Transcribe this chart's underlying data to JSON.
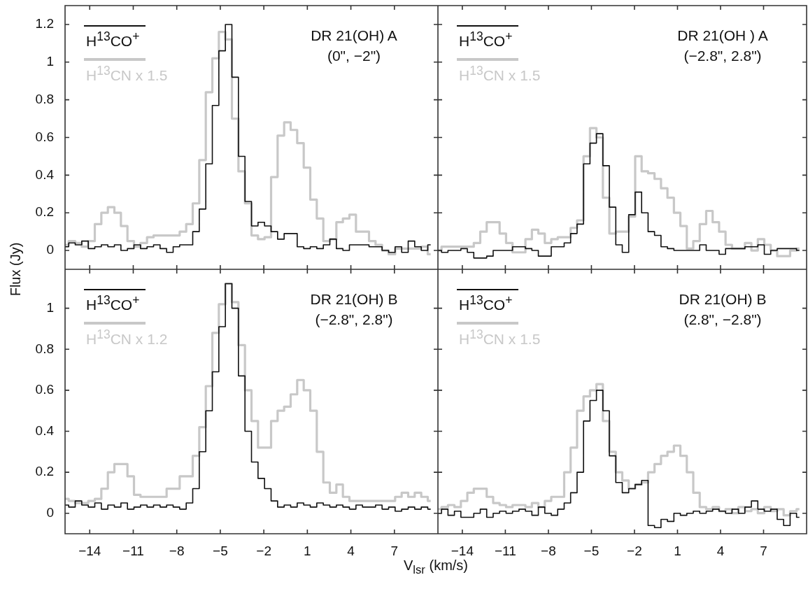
{
  "chart_data": [
    {
      "type": "step",
      "title": "DR 21(OH) A",
      "subtitle": "(0\", −2\")",
      "ylabel": "Flux (Jy)",
      "legend": "top left",
      "tick_labels": "y",
      "xlim": [
        -15.7,
        10
      ],
      "xticks": [
        -14,
        -11,
        -8,
        -5,
        -2,
        1,
        4,
        7
      ],
      "ylim": [
        -0.1,
        1.3
      ],
      "yticks": [
        0,
        0.2,
        0.4,
        0.6,
        0.8,
        1,
        1.2
      ],
      "x": [
        -15.7,
        -15.2,
        -14.8,
        -14.3,
        -13.9,
        -13.4,
        -13.0,
        -12.5,
        -12.1,
        -11.6,
        -11.2,
        -10.7,
        -10.3,
        -9.8,
        -9.4,
        -8.9,
        -8.5,
        -8.0,
        -7.6,
        -7.1,
        -6.7,
        -6.2,
        -5.8,
        -5.3,
        -4.9,
        -4.4,
        -4.0,
        -3.5,
        -3.1,
        -2.6,
        -2.2,
        -1.7,
        -1.3,
        -0.8,
        -0.4,
        0.1,
        0.5,
        1.0,
        1.4,
        1.9,
        2.3,
        2.8,
        3.2,
        3.7,
        4.1,
        4.6,
        5.0,
        5.5,
        5.9,
        6.4,
        6.8,
        7.3,
        7.7,
        8.2,
        8.6,
        9.1,
        9.5
      ],
      "series": [
        {
          "name": "H$^{13}$CO$^{+}$",
          "color": "#111111",
          "values": [
            0.02,
            0.04,
            0.03,
            0.05,
            0.01,
            0.02,
            0.03,
            0.02,
            0.03,
            0.0,
            0.01,
            0.03,
            0.01,
            0.02,
            0.03,
            0.01,
            -0.01,
            0.02,
            0.03,
            0.03,
            0.1,
            0.22,
            0.46,
            0.77,
            1.06,
            1.2,
            0.92,
            0.5,
            0.26,
            0.13,
            0.15,
            0.13,
            0.1,
            0.06,
            0.09,
            0.09,
            0.02,
            0.01,
            0.02,
            0.01,
            0.03,
            0.06,
            0.01,
            0.0,
            0.03,
            0.03,
            0.03,
            0.02,
            0.02,
            0.0,
            -0.01,
            0.02,
            -0.01,
            0.05,
            0.02,
            0.0,
            0.03
          ]
        },
        {
          "name": "H$^{13}$CN x 1.5",
          "color": "#c8c8c8",
          "values": [
            0.03,
            0.05,
            0.04,
            0.02,
            0.05,
            0.14,
            0.2,
            0.23,
            0.2,
            0.13,
            0.05,
            0.02,
            0.04,
            0.07,
            0.08,
            0.08,
            0.08,
            0.08,
            0.1,
            0.14,
            0.25,
            0.48,
            0.84,
            1.02,
            1.16,
            1.12,
            0.7,
            0.42,
            0.25,
            0.08,
            0.06,
            0.07,
            0.39,
            0.61,
            0.68,
            0.64,
            0.57,
            0.44,
            0.27,
            0.17,
            0.05,
            0.06,
            0.15,
            0.17,
            0.19,
            0.1,
            0.1,
            0.05,
            0.03,
            0.0,
            -0.02,
            0.01,
            0.01,
            0.01,
            0.01,
            0.02,
            -0.02
          ]
        }
      ]
    },
    {
      "type": "step",
      "title": "DR 21(OH ) A",
      "subtitle": "(−2.8\", 2.8\")",
      "legend": "top left",
      "tick_labels": false,
      "xlim": [
        -15.7,
        10
      ],
      "xticks": [
        -14,
        -11,
        -8,
        -5,
        -2,
        1,
        4,
        7
      ],
      "ylim": [
        -0.1,
        1.3
      ],
      "yticks": [
        0,
        0.2,
        0.4,
        0.6,
        0.8,
        1,
        1.2
      ],
      "x": [
        -15.7,
        -15.2,
        -14.8,
        -14.3,
        -13.9,
        -13.4,
        -13.0,
        -12.5,
        -12.1,
        -11.6,
        -11.2,
        -10.7,
        -10.3,
        -9.8,
        -9.4,
        -8.9,
        -8.5,
        -8.0,
        -7.6,
        -7.1,
        -6.7,
        -6.2,
        -5.8,
        -5.3,
        -4.9,
        -4.4,
        -4.0,
        -3.5,
        -3.1,
        -2.6,
        -2.2,
        -1.7,
        -1.3,
        -0.8,
        -0.4,
        0.1,
        0.5,
        1.0,
        1.4,
        1.9,
        2.3,
        2.8,
        3.2,
        3.7,
        4.1,
        4.6,
        5.0,
        5.5,
        5.9,
        6.4,
        6.8,
        7.3,
        7.7,
        8.2,
        8.6,
        9.1,
        9.5
      ],
      "series": [
        {
          "name": "H$^{13}$CO$^{+}$",
          "color": "#111111",
          "values": [
            0.0,
            -0.01,
            0.0,
            0.0,
            0.01,
            -0.01,
            -0.04,
            -0.04,
            -0.03,
            0.0,
            0.0,
            0.0,
            0.02,
            0.02,
            0.01,
            0.0,
            -0.03,
            -0.03,
            0.02,
            0.02,
            0.04,
            0.09,
            0.14,
            0.46,
            0.57,
            0.62,
            0.45,
            0.23,
            0.03,
            -0.01,
            0.19,
            0.31,
            0.2,
            0.1,
            0.08,
            0.02,
            0.01,
            0.0,
            0.0,
            0.0,
            0.0,
            0.03,
            0.0,
            0.0,
            -0.02,
            0.01,
            0.01,
            0.01,
            0.02,
            0.02,
            0.03,
            -0.02,
            0.0,
            0.01,
            0.01,
            0.01,
            0.0
          ]
        },
        {
          "name": "H$^{13}$CN x 1.5",
          "color": "#c8c8c8",
          "values": [
            0.0,
            0.02,
            0.02,
            0.02,
            0.02,
            0.02,
            0.04,
            0.1,
            0.15,
            0.15,
            0.09,
            0.04,
            -0.01,
            -0.01,
            0.06,
            0.11,
            0.09,
            0.04,
            0.06,
            0.07,
            0.07,
            0.12,
            0.16,
            0.5,
            0.65,
            0.6,
            0.28,
            0.09,
            0.1,
            0.1,
            0.18,
            0.5,
            0.42,
            0.41,
            0.38,
            0.33,
            0.28,
            0.2,
            0.13,
            0.01,
            0.05,
            0.14,
            0.21,
            0.15,
            0.1,
            0.03,
            0.01,
            0.01,
            0.04,
            0.0,
            0.06,
            0.03,
            0.0,
            -0.03,
            -0.03,
            0.0,
            0.01
          ]
        }
      ]
    },
    {
      "type": "step",
      "title": "DR 21(OH) B",
      "subtitle": "(−2.8\", 2.8\")",
      "xlabel": "V$_{lsr}$ (km/s)",
      "legend": "top left",
      "xlim": [
        -15.7,
        10
      ],
      "xticks": [
        -14,
        -11,
        -8,
        -5,
        -2,
        1,
        4,
        7
      ],
      "ylim": [
        -0.1,
        1.19
      ],
      "yticks": [
        0,
        0.2,
        0.4,
        0.6,
        0.8,
        1
      ],
      "x": [
        -15.7,
        -15.2,
        -14.8,
        -14.3,
        -13.9,
        -13.4,
        -13.0,
        -12.5,
        -12.1,
        -11.6,
        -11.2,
        -10.7,
        -10.3,
        -9.8,
        -9.4,
        -8.9,
        -8.5,
        -8.0,
        -7.6,
        -7.1,
        -6.7,
        -6.2,
        -5.8,
        -5.3,
        -4.9,
        -4.4,
        -4.0,
        -3.5,
        -3.1,
        -2.6,
        -2.2,
        -1.7,
        -1.3,
        -0.8,
        -0.4,
        0.1,
        0.5,
        1.0,
        1.4,
        1.9,
        2.3,
        2.8,
        3.2,
        3.7,
        4.1,
        4.6,
        5.0,
        5.5,
        5.9,
        6.4,
        6.8,
        7.3,
        7.7,
        8.2,
        8.6,
        9.1,
        9.5
      ],
      "series": [
        {
          "name": "H$^{13}$CO$^{+}$",
          "color": "#111111",
          "values": [
            0.04,
            0.03,
            0.06,
            0.04,
            0.03,
            0.05,
            0.02,
            0.04,
            0.03,
            0.05,
            0.02,
            0.03,
            0.04,
            0.03,
            0.04,
            0.03,
            0.04,
            0.03,
            0.02,
            0.05,
            0.12,
            0.3,
            0.5,
            0.69,
            0.91,
            1.12,
            1.0,
            0.67,
            0.4,
            0.25,
            0.17,
            0.12,
            0.06,
            0.03,
            0.04,
            0.03,
            0.05,
            0.04,
            0.03,
            0.05,
            0.04,
            0.03,
            0.04,
            0.03,
            0.02,
            0.04,
            0.03,
            0.03,
            0.04,
            0.02,
            0.03,
            0.01,
            0.02,
            0.03,
            0.02,
            0.03,
            0.02
          ]
        },
        {
          "name": "H$^{13}$CN x 1.2",
          "color": "#c8c8c8",
          "values": [
            0.07,
            0.06,
            0.05,
            0.05,
            0.06,
            0.07,
            0.12,
            0.2,
            0.24,
            0.24,
            0.18,
            0.09,
            0.08,
            0.08,
            0.08,
            0.08,
            0.12,
            0.12,
            0.18,
            0.18,
            0.28,
            0.42,
            0.62,
            0.88,
            1.02,
            1.12,
            1.03,
            0.82,
            0.6,
            0.45,
            0.32,
            0.32,
            0.45,
            0.5,
            0.52,
            0.58,
            0.65,
            0.6,
            0.5,
            0.3,
            0.15,
            0.1,
            0.14,
            0.08,
            0.06,
            0.06,
            0.06,
            0.06,
            0.06,
            0.06,
            0.06,
            0.08,
            0.1,
            0.08,
            0.1,
            0.08,
            0.06
          ]
        }
      ]
    },
    {
      "type": "step",
      "title": "DR 21(OH) B",
      "subtitle": "(2.8\", −2.8\")",
      "legend": "top left",
      "tick_labels": "x",
      "xlim": [
        -15.7,
        10
      ],
      "xticks": [
        -14,
        -11,
        -8,
        -5,
        -2,
        1,
        4,
        7
      ],
      "ylim": [
        -0.1,
        1.19
      ],
      "yticks": [
        0,
        0.2,
        0.4,
        0.6,
        0.8,
        1
      ],
      "x": [
        -15.7,
        -15.2,
        -14.8,
        -14.3,
        -13.9,
        -13.4,
        -13.0,
        -12.5,
        -12.1,
        -11.6,
        -11.2,
        -10.7,
        -10.3,
        -9.8,
        -9.4,
        -8.9,
        -8.5,
        -8.0,
        -7.6,
        -7.1,
        -6.7,
        -6.2,
        -5.8,
        -5.3,
        -4.9,
        -4.4,
        -4.0,
        -3.5,
        -3.1,
        -2.6,
        -2.2,
        -1.7,
        -1.3,
        -0.8,
        -0.4,
        0.1,
        0.5,
        1.0,
        1.4,
        1.9,
        2.3,
        2.8,
        3.2,
        3.7,
        4.1,
        4.6,
        5.0,
        5.5,
        5.9,
        6.4,
        6.8,
        7.3,
        7.7,
        8.2,
        8.6,
        9.1,
        9.5
      ],
      "series": [
        {
          "name": "H$^{13}$CO$^{+}$",
          "color": "#111111",
          "values": [
            0.0,
            0.02,
            -0.01,
            0.01,
            -0.02,
            -0.02,
            0.0,
            0.02,
            -0.02,
            0.0,
            0.01,
            0.0,
            0.01,
            0.02,
            0.01,
            -0.01,
            0.03,
            0.0,
            -0.01,
            0.02,
            0.05,
            0.1,
            0.2,
            0.45,
            0.55,
            0.6,
            0.5,
            0.28,
            0.15,
            0.1,
            0.12,
            0.14,
            0.16,
            -0.06,
            -0.07,
            -0.03,
            -0.04,
            0.0,
            -0.01,
            0.0,
            0.01,
            0.0,
            0.01,
            0.02,
            0.01,
            0.0,
            0.02,
            0.0,
            0.03,
            0.06,
            0.02,
            0.01,
            0.02,
            -0.03,
            -0.06,
            0.0,
            -0.02
          ]
        },
        {
          "name": "H$^{13}$CN x 1.5",
          "color": "#c8c8c8",
          "values": [
            0.02,
            0.03,
            0.04,
            0.03,
            0.06,
            0.1,
            0.12,
            0.12,
            0.08,
            0.05,
            0.04,
            0.03,
            0.04,
            0.04,
            0.03,
            0.05,
            0.03,
            0.06,
            0.08,
            0.08,
            0.2,
            0.32,
            0.5,
            0.57,
            0.6,
            0.63,
            0.45,
            0.3,
            0.2,
            0.16,
            0.12,
            0.14,
            0.15,
            0.2,
            0.24,
            0.28,
            0.3,
            0.33,
            0.28,
            0.2,
            0.1,
            0.03,
            0.02,
            0.03,
            0.01,
            0.02,
            0.0,
            0.03,
            0.01,
            0.02,
            0.0,
            0.03,
            0.01,
            0.02,
            -0.01,
            0.01,
            0.02
          ]
        }
      ]
    }
  ]
}
